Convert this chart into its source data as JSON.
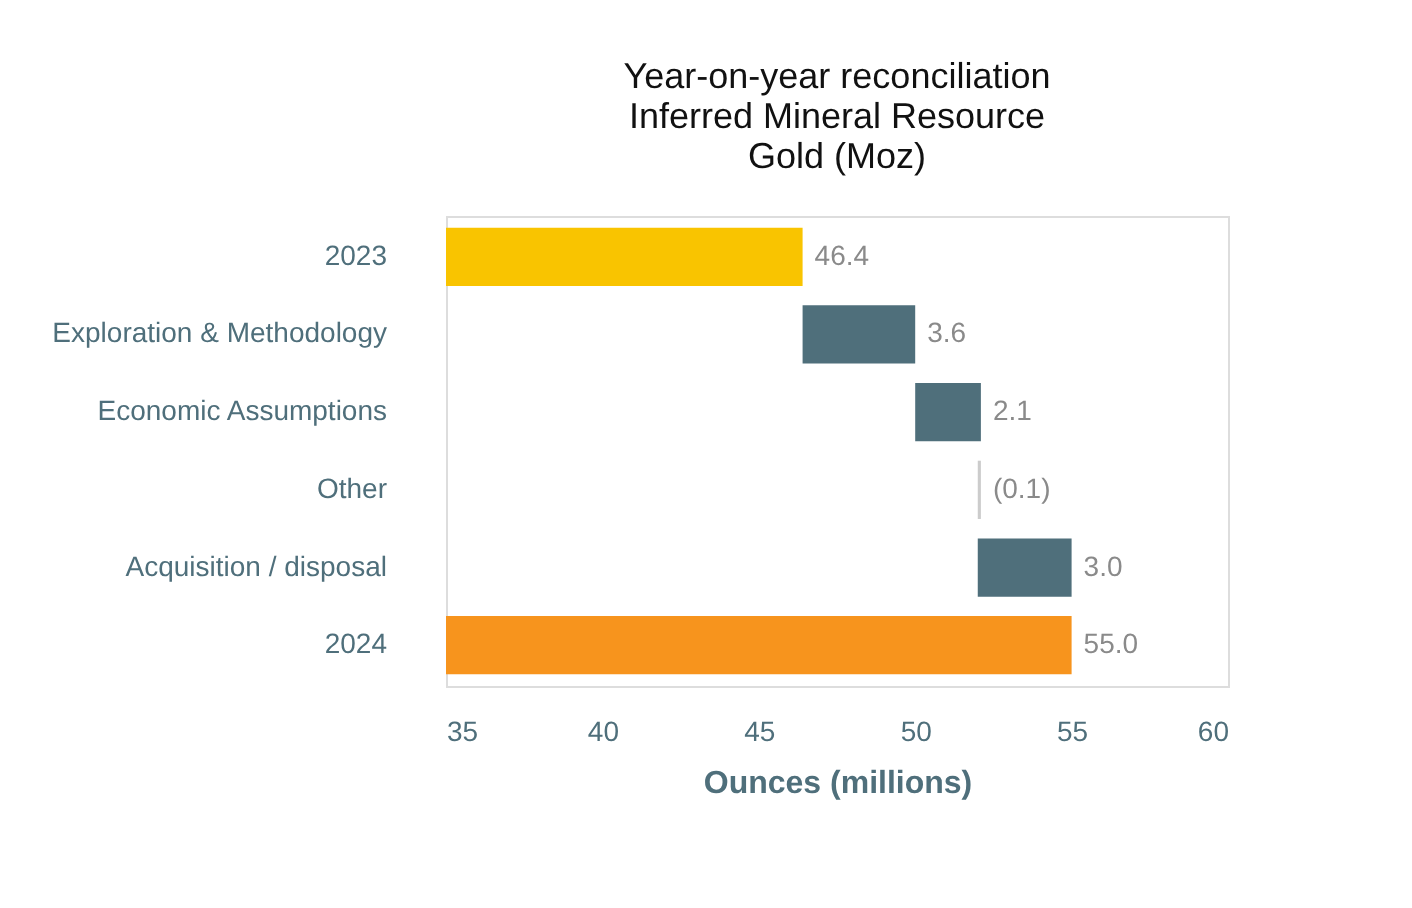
{
  "chart_data": {
    "type": "bar",
    "orientation": "horizontal",
    "title": "Year-on-year reconciliation\nInferred Mineral Resource\nGold (Moz)",
    "xlabel": "Ounces (millions)",
    "categories": [
      "2023",
      "Exploration & Methodology",
      "Economic Assumptions",
      "Other",
      "Acquisition / disposal",
      "2024"
    ],
    "values": [
      46.4,
      3.6,
      2.1,
      -0.1,
      3.0,
      55.0
    ],
    "base": [
      0,
      46.4,
      50.0,
      52.1,
      52.0,
      0
    ],
    "colors": [
      "#f9c400",
      "#4f6f7b",
      "#4f6f7b",
      "#cccccc",
      "#4f6f7b",
      "#f7941d"
    ],
    "value_labels": [
      "46.4",
      "3.6",
      "2.1",
      "(0.1)",
      "3.0",
      "55.0"
    ],
    "xlim": [
      35,
      60
    ],
    "xticks": [
      35,
      40,
      45,
      50,
      55,
      60
    ],
    "grid": false
  }
}
